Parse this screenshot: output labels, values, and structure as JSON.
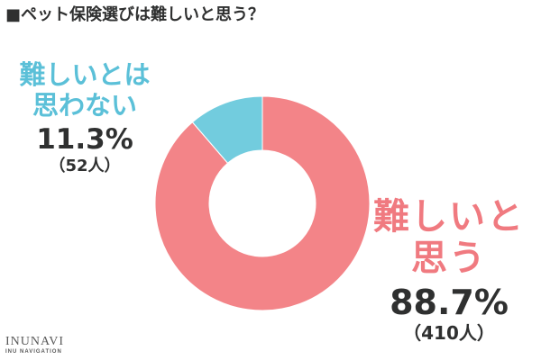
{
  "page": {
    "title": "■ペット保険選びは難しいと思う？"
  },
  "chart_data": {
    "type": "pie",
    "donut": true,
    "categories": [
      "難しいと思う",
      "難しいとは思わない"
    ],
    "values": [
      88.7,
      11.3
    ],
    "counts": [
      410,
      52
    ],
    "colors": [
      "#f38488",
      "#72ccde"
    ],
    "slices": [
      {
        "label_lines": [
          "難しいと",
          "思う"
        ],
        "value": 88.7,
        "percent_text": "88.7%",
        "count_text": "（410人）",
        "color": "#f38488"
      },
      {
        "label_lines": [
          "難しいとは",
          "思わない"
        ],
        "value": 11.3,
        "percent_text": "11.3%",
        "count_text": "（52人）",
        "color": "#72ccde"
      }
    ]
  },
  "logo": {
    "name": "INUNAVI",
    "sub": "INU NAVIGATION"
  }
}
